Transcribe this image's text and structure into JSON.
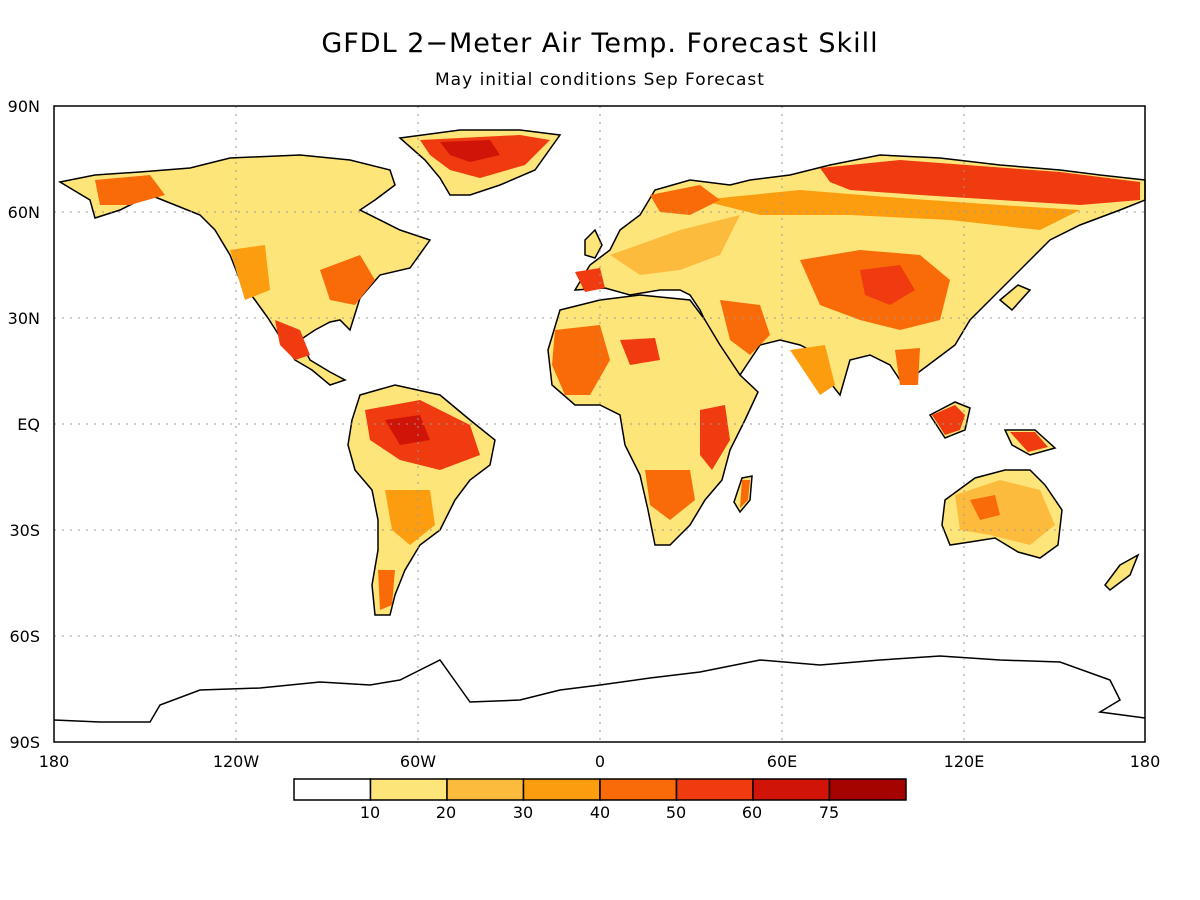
{
  "title": "GFDL 2−Meter Air Temp. Forecast Skill",
  "subtitle": "May initial conditions   Sep Forecast",
  "axes": {
    "lat_labels": [
      "90N",
      "60N",
      "30N",
      "EQ",
      "30S",
      "60S",
      "90S"
    ],
    "lon_labels": [
      "180",
      "120W",
      "60W",
      "0",
      "60E",
      "120E",
      "180"
    ]
  },
  "colorbar": {
    "colors": [
      "#ffffff",
      "#fee57a",
      "#fdbb3e",
      "#fc9d10",
      "#f96b08",
      "#f03a0f",
      "#d01408",
      "#a50300"
    ],
    "labels": [
      "10",
      "20",
      "30",
      "40",
      "50",
      "60",
      "75"
    ]
  },
  "regions": [
    {
      "name": "greenland",
      "color": "#f03a0f"
    },
    {
      "name": "siberia",
      "color": "#f03a0f"
    },
    {
      "name": "central-asia",
      "color": "#f96b08"
    },
    {
      "name": "amazon",
      "color": "#f03a0f"
    },
    {
      "name": "east-africa",
      "color": "#f03a0f"
    },
    {
      "name": "west-africa",
      "color": "#f96b08"
    },
    {
      "name": "arabia",
      "color": "#f96b08"
    },
    {
      "name": "borneo",
      "color": "#f03a0f"
    },
    {
      "name": "australia",
      "color": "#fdbb3e"
    },
    {
      "name": "east-us",
      "color": "#f96b08"
    },
    {
      "name": "mexico",
      "color": "#f03a0f"
    },
    {
      "name": "scandinavia",
      "color": "#f96b08"
    }
  ]
}
